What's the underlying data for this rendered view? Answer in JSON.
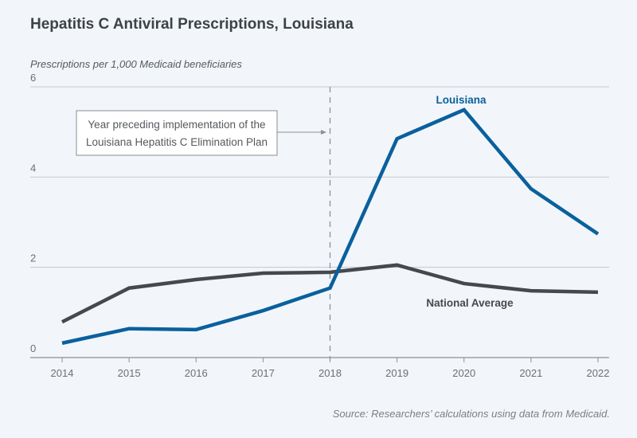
{
  "chart_data": {
    "type": "line",
    "title": "Hepatitis C Antiviral Prescriptions, Louisiana",
    "ylabel": "Prescriptions per 1,000 Medicaid beneficiaries",
    "xlabel": "",
    "x": [
      2014,
      2015,
      2016,
      2017,
      2018,
      2019,
      2020,
      2021,
      2022
    ],
    "ylim": [
      0,
      6
    ],
    "yticks": [
      0,
      2,
      4,
      6
    ],
    "grid": true,
    "series": [
      {
        "name": "Louisiana",
        "color": "#0a609d",
        "values": [
          0.32,
          0.64,
          0.62,
          1.04,
          1.54,
          4.85,
          5.49,
          3.74,
          2.74
        ]
      },
      {
        "name": "National Average",
        "color": "#45494d",
        "values": [
          0.79,
          1.54,
          1.73,
          1.87,
          1.89,
          2.05,
          1.64,
          1.48,
          1.45
        ]
      }
    ],
    "annotations": [
      {
        "text_line1": "Year preceding implementation of the",
        "text_line2": "Louisiana Hepatitis C Elimination Plan",
        "x": 2018
      }
    ],
    "source": "Source: Researchers’ calculations using data from Medicaid."
  }
}
